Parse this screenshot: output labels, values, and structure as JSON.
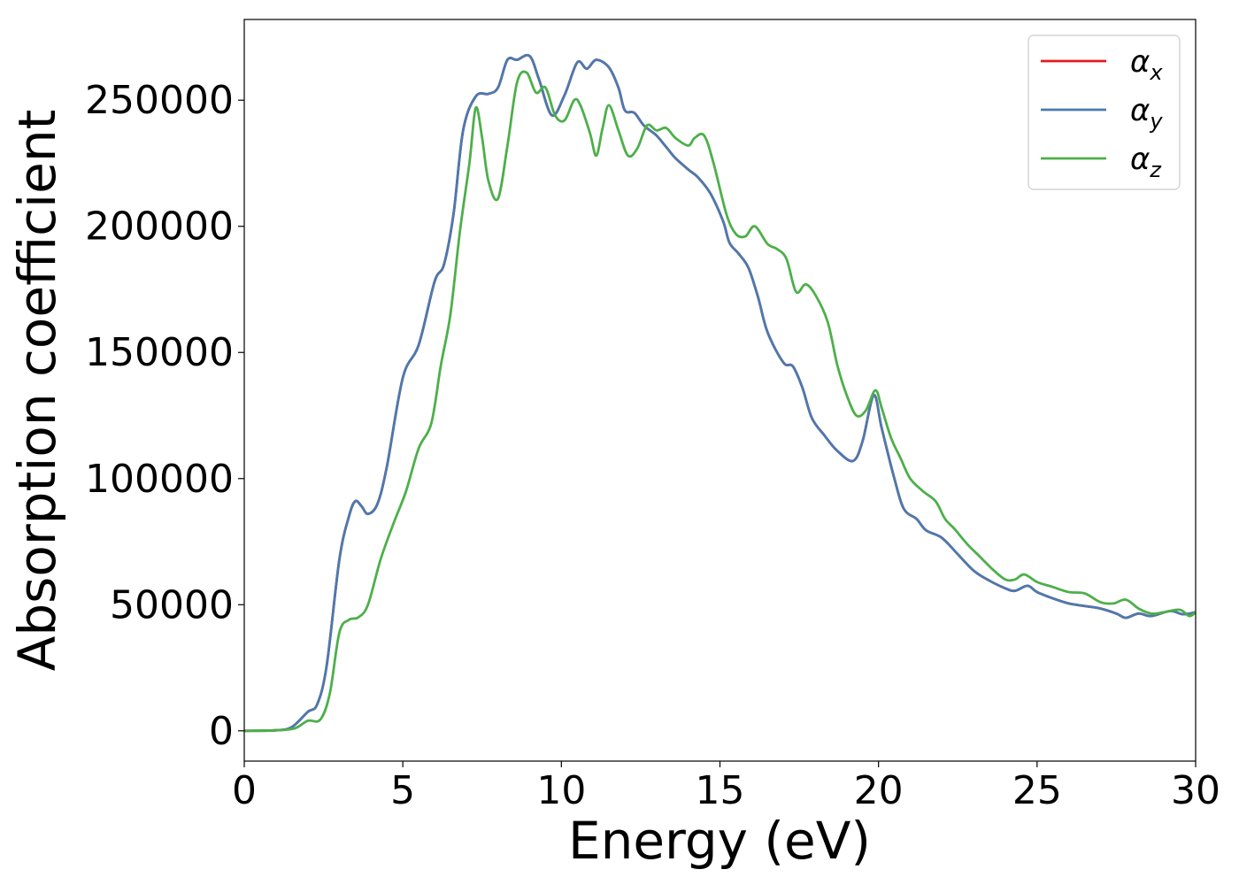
{
  "chart_data": {
    "type": "line",
    "title": "",
    "xlabel": "Energy (eV)",
    "ylabel": "Absorption coefficient",
    "xlim": [
      0,
      30
    ],
    "ylim": [
      -12000,
      282000
    ],
    "xticks": [
      0,
      5,
      10,
      15,
      20,
      25,
      30
    ],
    "yticks": [
      0,
      50000,
      100000,
      150000,
      200000,
      250000
    ],
    "grid": false,
    "legend_position": "top-right",
    "series": [
      {
        "name": "α_x",
        "label_symbol": "α",
        "label_subscript": "x",
        "color": "#e41a1c",
        "points": [
          [
            0,
            0
          ],
          [
            1,
            200
          ],
          [
            1.5,
            1500
          ],
          [
            2,
            7500
          ],
          [
            2.3,
            10500
          ],
          [
            2.6,
            26000
          ],
          [
            3,
            68000
          ],
          [
            3.3,
            85000
          ],
          [
            3.5,
            91000
          ],
          [
            3.7,
            89000
          ],
          [
            3.9,
            86000
          ],
          [
            4.2,
            90000
          ],
          [
            4.5,
            105000
          ],
          [
            5,
            140000
          ],
          [
            5.5,
            153000
          ],
          [
            6,
            178000
          ],
          [
            6.3,
            185000
          ],
          [
            6.6,
            205000
          ],
          [
            6.9,
            238000
          ],
          [
            7.3,
            251500
          ],
          [
            7.7,
            252500
          ],
          [
            8,
            255000
          ],
          [
            8.3,
            266000
          ],
          [
            8.6,
            266000
          ],
          [
            9,
            267500
          ],
          [
            9.3,
            258000
          ],
          [
            9.7,
            244000
          ],
          [
            10.1,
            252000
          ],
          [
            10.5,
            265000
          ],
          [
            10.8,
            262500
          ],
          [
            11.1,
            266000
          ],
          [
            11.5,
            263000
          ],
          [
            11.8,
            255000
          ],
          [
            12,
            246000
          ],
          [
            12.3,
            245000
          ],
          [
            12.6,
            240000
          ],
          [
            13,
            236000
          ],
          [
            13.3,
            231500
          ],
          [
            13.6,
            227000
          ],
          [
            14,
            222500
          ],
          [
            14.3,
            219500
          ],
          [
            14.7,
            213000
          ],
          [
            15.1,
            202000
          ],
          [
            15.3,
            193500
          ],
          [
            15.6,
            189000
          ],
          [
            15.9,
            183500
          ],
          [
            16.2,
            172000
          ],
          [
            16.5,
            158000
          ],
          [
            17,
            146000
          ],
          [
            17.3,
            144500
          ],
          [
            17.6,
            136000
          ],
          [
            17.9,
            124000
          ],
          [
            18.3,
            117000
          ],
          [
            18.7,
            111000
          ],
          [
            19.2,
            107000
          ],
          [
            19.5,
            115000
          ],
          [
            19.85,
            133000
          ],
          [
            20.1,
            120000
          ],
          [
            20.5,
            100000
          ],
          [
            20.8,
            88000
          ],
          [
            21.2,
            84000
          ],
          [
            21.5,
            79500
          ],
          [
            22,
            76500
          ],
          [
            22.5,
            70000
          ],
          [
            23,
            63500
          ],
          [
            23.5,
            59500
          ],
          [
            24,
            56500
          ],
          [
            24.3,
            55500
          ],
          [
            24.7,
            57500
          ],
          [
            25,
            55000
          ],
          [
            25.5,
            52500
          ],
          [
            26,
            50500
          ],
          [
            26.5,
            49500
          ],
          [
            27,
            48500
          ],
          [
            27.5,
            46500
          ],
          [
            27.8,
            44800
          ],
          [
            28.2,
            46500
          ],
          [
            28.6,
            45500
          ],
          [
            29.2,
            47500
          ],
          [
            29.6,
            46200
          ],
          [
            30,
            47000
          ]
        ]
      },
      {
        "name": "α_y",
        "label_symbol": "α",
        "label_subscript": "y",
        "color": "#4a7aaf",
        "points": [
          [
            0,
            0
          ],
          [
            1,
            200
          ],
          [
            1.5,
            1500
          ],
          [
            2,
            7500
          ],
          [
            2.3,
            10500
          ],
          [
            2.6,
            26000
          ],
          [
            3,
            68000
          ],
          [
            3.3,
            85000
          ],
          [
            3.5,
            91000
          ],
          [
            3.7,
            89000
          ],
          [
            3.9,
            86000
          ],
          [
            4.2,
            90000
          ],
          [
            4.5,
            105000
          ],
          [
            5,
            140000
          ],
          [
            5.5,
            153000
          ],
          [
            6,
            178000
          ],
          [
            6.3,
            185000
          ],
          [
            6.6,
            205000
          ],
          [
            6.9,
            238000
          ],
          [
            7.3,
            251500
          ],
          [
            7.7,
            252500
          ],
          [
            8,
            255000
          ],
          [
            8.3,
            266000
          ],
          [
            8.6,
            266000
          ],
          [
            9,
            267500
          ],
          [
            9.3,
            258000
          ],
          [
            9.7,
            244000
          ],
          [
            10.1,
            252000
          ],
          [
            10.5,
            265000
          ],
          [
            10.8,
            262500
          ],
          [
            11.1,
            266000
          ],
          [
            11.5,
            263000
          ],
          [
            11.8,
            255000
          ],
          [
            12,
            246000
          ],
          [
            12.3,
            245000
          ],
          [
            12.6,
            240000
          ],
          [
            13,
            236000
          ],
          [
            13.3,
            231500
          ],
          [
            13.6,
            227000
          ],
          [
            14,
            222500
          ],
          [
            14.3,
            219500
          ],
          [
            14.7,
            213000
          ],
          [
            15.1,
            202000
          ],
          [
            15.3,
            193500
          ],
          [
            15.6,
            189000
          ],
          [
            15.9,
            183500
          ],
          [
            16.2,
            172000
          ],
          [
            16.5,
            158000
          ],
          [
            17,
            146000
          ],
          [
            17.3,
            144500
          ],
          [
            17.6,
            136000
          ],
          [
            17.9,
            124000
          ],
          [
            18.3,
            117000
          ],
          [
            18.7,
            111000
          ],
          [
            19.2,
            107000
          ],
          [
            19.5,
            115000
          ],
          [
            19.85,
            133000
          ],
          [
            20.1,
            120000
          ],
          [
            20.5,
            100000
          ],
          [
            20.8,
            88000
          ],
          [
            21.2,
            84000
          ],
          [
            21.5,
            79500
          ],
          [
            22,
            76500
          ],
          [
            22.5,
            70000
          ],
          [
            23,
            63500
          ],
          [
            23.5,
            59500
          ],
          [
            24,
            56500
          ],
          [
            24.3,
            55500
          ],
          [
            24.7,
            57500
          ],
          [
            25,
            55000
          ],
          [
            25.5,
            52500
          ],
          [
            26,
            50500
          ],
          [
            26.5,
            49500
          ],
          [
            27,
            48500
          ],
          [
            27.5,
            46500
          ],
          [
            27.8,
            44800
          ],
          [
            28.2,
            46500
          ],
          [
            28.6,
            45500
          ],
          [
            29.2,
            47500
          ],
          [
            29.6,
            46200
          ],
          [
            30,
            47000
          ]
        ]
      },
      {
        "name": "α_z",
        "label_symbol": "α",
        "label_subscript": "z",
        "color": "#4daf4a",
        "points": [
          [
            0,
            0
          ],
          [
            1,
            200
          ],
          [
            1.6,
            1000
          ],
          [
            2,
            4000
          ],
          [
            2.4,
            4500
          ],
          [
            2.7,
            15000
          ],
          [
            3,
            39000
          ],
          [
            3.3,
            44000
          ],
          [
            3.6,
            45000
          ],
          [
            3.9,
            50000
          ],
          [
            4.3,
            68000
          ],
          [
            4.7,
            82000
          ],
          [
            5.1,
            95000
          ],
          [
            5.5,
            112000
          ],
          [
            5.9,
            122000
          ],
          [
            6.2,
            145000
          ],
          [
            6.5,
            165000
          ],
          [
            6.8,
            198000
          ],
          [
            7.1,
            225000
          ],
          [
            7.3,
            247000
          ],
          [
            7.5,
            235000
          ],
          [
            7.7,
            218000
          ],
          [
            8,
            211000
          ],
          [
            8.3,
            232000
          ],
          [
            8.6,
            257000
          ],
          [
            8.9,
            261000
          ],
          [
            9.2,
            253000
          ],
          [
            9.5,
            255000
          ],
          [
            9.8,
            244000
          ],
          [
            10.1,
            242000
          ],
          [
            10.4,
            250000
          ],
          [
            10.6,
            248000
          ],
          [
            10.9,
            237000
          ],
          [
            11.1,
            228000
          ],
          [
            11.3,
            239000
          ],
          [
            11.5,
            248000
          ],
          [
            11.8,
            238000
          ],
          [
            12.1,
            228000
          ],
          [
            12.4,
            231000
          ],
          [
            12.7,
            240000
          ],
          [
            13,
            238000
          ],
          [
            13.3,
            239000
          ],
          [
            13.6,
            235000
          ],
          [
            14,
            232000
          ],
          [
            14.2,
            235000
          ],
          [
            14.5,
            236000
          ],
          [
            14.8,
            225000
          ],
          [
            15.2,
            205000
          ],
          [
            15.5,
            197000
          ],
          [
            15.8,
            196000
          ],
          [
            16.1,
            200000
          ],
          [
            16.5,
            193000
          ],
          [
            16.8,
            191000
          ],
          [
            17.1,
            187000
          ],
          [
            17.4,
            174000
          ],
          [
            17.7,
            177000
          ],
          [
            18,
            173000
          ],
          [
            18.4,
            162000
          ],
          [
            18.7,
            145000
          ],
          [
            19,
            133000
          ],
          [
            19.3,
            125000
          ],
          [
            19.6,
            127000
          ],
          [
            19.9,
            135000
          ],
          [
            20.1,
            128000
          ],
          [
            20.4,
            116000
          ],
          [
            20.7,
            108000
          ],
          [
            21,
            100000
          ],
          [
            21.4,
            95000
          ],
          [
            21.8,
            91000
          ],
          [
            22.1,
            84000
          ],
          [
            22.4,
            80000
          ],
          [
            22.8,
            74000
          ],
          [
            23.2,
            69000
          ],
          [
            23.6,
            64000
          ],
          [
            24,
            60000
          ],
          [
            24.3,
            60000
          ],
          [
            24.6,
            62000
          ],
          [
            25,
            59000
          ],
          [
            25.5,
            57000
          ],
          [
            26,
            55000
          ],
          [
            26.5,
            54500
          ],
          [
            27,
            51000
          ],
          [
            27.4,
            50500
          ],
          [
            27.8,
            52000
          ],
          [
            28.2,
            48500
          ],
          [
            28.6,
            46500
          ],
          [
            29,
            47000
          ],
          [
            29.5,
            48000
          ],
          [
            29.8,
            45500
          ],
          [
            30,
            47000
          ]
        ]
      }
    ]
  }
}
